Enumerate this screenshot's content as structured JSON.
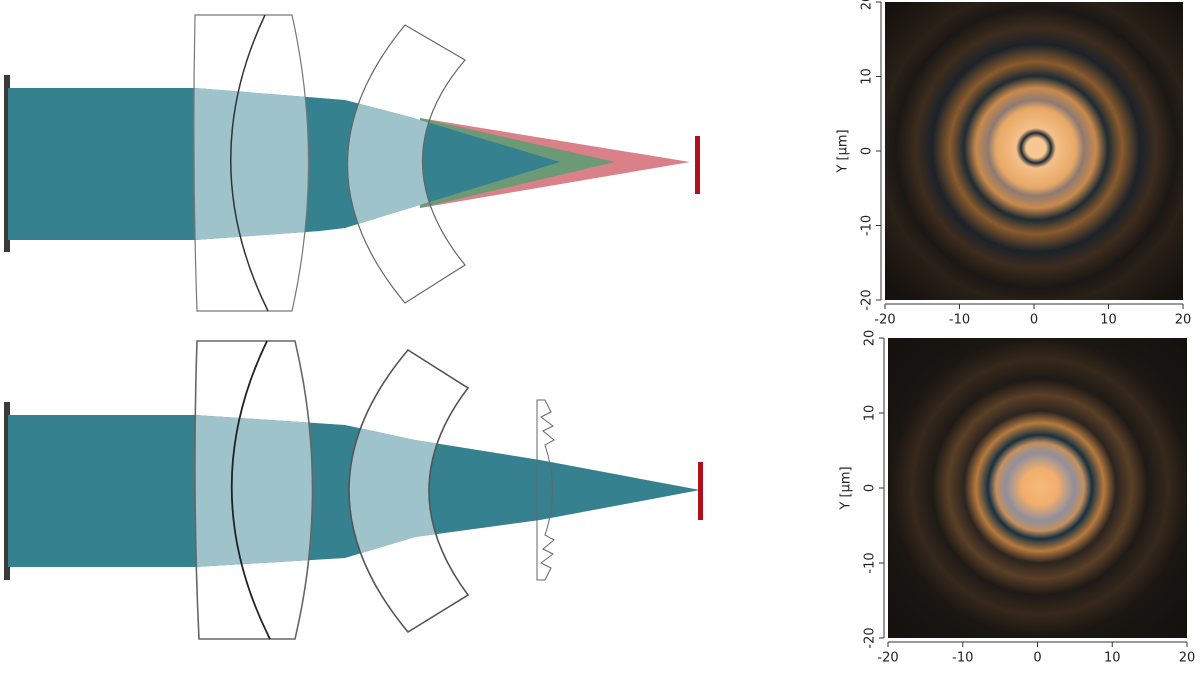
{
  "plots": [
    {
      "ylabel": "Y [µm]",
      "xlim": [
        -20,
        20
      ],
      "ylim": [
        -20,
        20
      ],
      "xticks": [
        -20,
        -10,
        0,
        10,
        20
      ],
      "yticks": [
        -20,
        -10,
        0,
        10,
        20
      ]
    },
    {
      "ylabel": "Y [µm]",
      "xlim": [
        -20,
        20
      ],
      "ylim": [
        -20,
        20
      ],
      "xticks": [
        -20,
        -10,
        0,
        10,
        20
      ],
      "yticks": [
        -20,
        -10,
        0,
        10,
        20
      ]
    }
  ]
}
